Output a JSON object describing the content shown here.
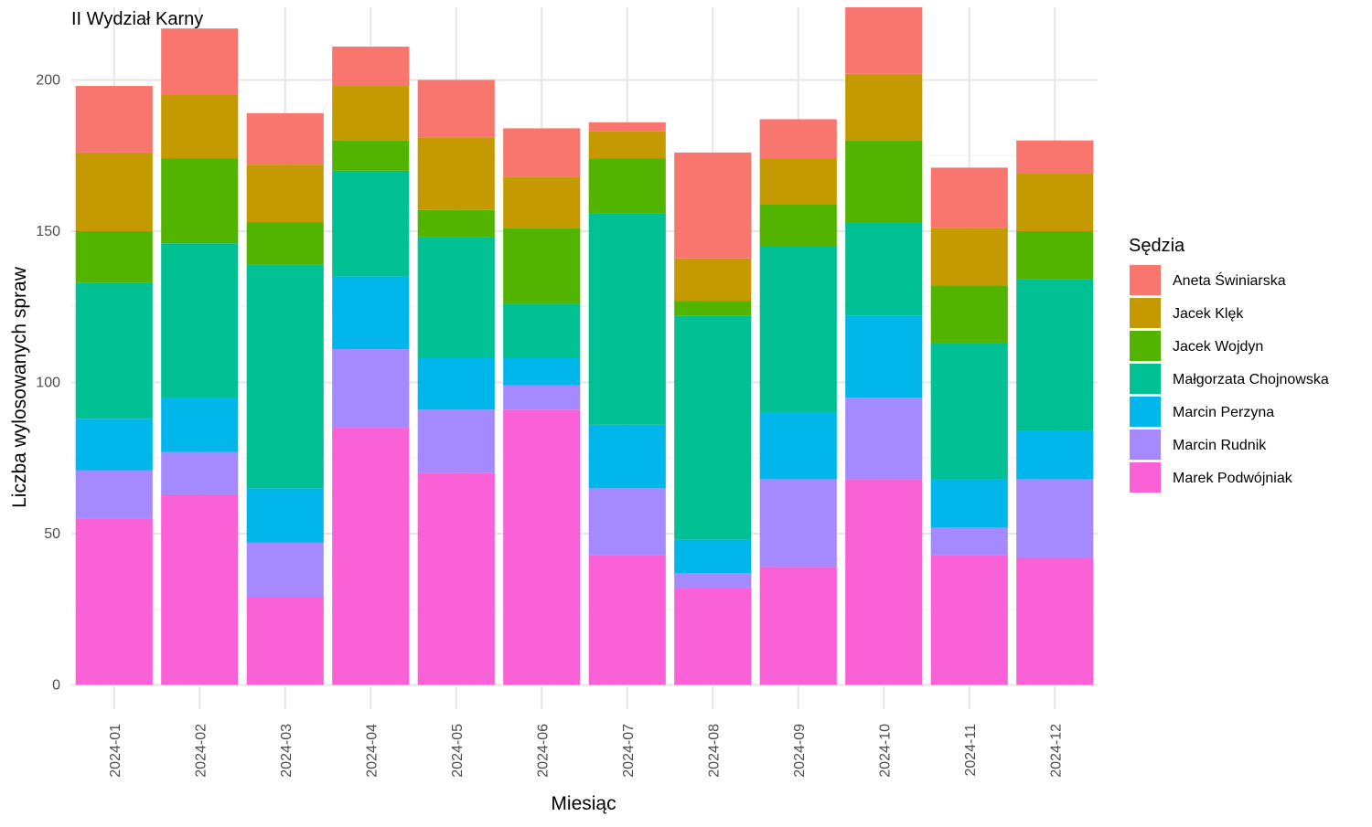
{
  "chart_data": {
    "type": "bar",
    "stacked": true,
    "title": "II Wydział Karny",
    "xlabel": "Miesiąc",
    "ylabel": "Liczba wylosowanych spraw",
    "ylim": [
      -8,
      224
    ],
    "yticks": [
      0,
      50,
      100,
      150,
      200
    ],
    "grid": true,
    "legend": {
      "title": "Sędzia",
      "position": "right"
    },
    "categories": [
      "2024-01",
      "2024-02",
      "2024-03",
      "2024-04",
      "2024-05",
      "2024-06",
      "2024-07",
      "2024-08",
      "2024-09",
      "2024-10",
      "2024-11",
      "2024-12"
    ],
    "series": [
      {
        "name": "Marek Podwójniak",
        "color": "#FB61D7",
        "values": [
          55,
          63,
          29,
          85,
          70,
          91,
          43,
          32,
          39,
          68,
          43,
          42
        ]
      },
      {
        "name": "Marcin Rudnik",
        "color": "#A58AFF",
        "values": [
          16,
          14,
          18,
          26,
          21,
          8,
          22,
          5,
          29,
          27,
          9,
          26
        ]
      },
      {
        "name": "Marcin Perzyna",
        "color": "#00B6EB",
        "values": [
          17,
          18,
          18,
          24,
          17,
          9,
          21,
          11,
          22,
          27,
          16,
          16
        ]
      },
      {
        "name": "Małgorzata Chojnowska",
        "color": "#00C094",
        "values": [
          45,
          51,
          74,
          35,
          40,
          18,
          70,
          74,
          55,
          31,
          45,
          50
        ]
      },
      {
        "name": "Jacek Wojdyn",
        "color": "#53B400",
        "values": [
          17,
          28,
          14,
          10,
          9,
          25,
          18,
          5,
          14,
          27,
          19,
          16
        ]
      },
      {
        "name": "Jacek Klęk",
        "color": "#C49A00",
        "values": [
          26,
          21,
          19,
          18,
          24,
          17,
          9,
          14,
          15,
          22,
          19,
          19
        ]
      },
      {
        "name": "Aneta Świniarska",
        "color": "#F8766D",
        "values": [
          22,
          22,
          17,
          13,
          19,
          16,
          3,
          35,
          13,
          22,
          20,
          11
        ]
      }
    ],
    "legend_order": [
      "Aneta Świniarska",
      "Jacek Klęk",
      "Jacek Wojdyn",
      "Małgorzata Chojnowska",
      "Marcin Perzyna",
      "Marcin Rudnik",
      "Marek Podwójniak"
    ]
  }
}
